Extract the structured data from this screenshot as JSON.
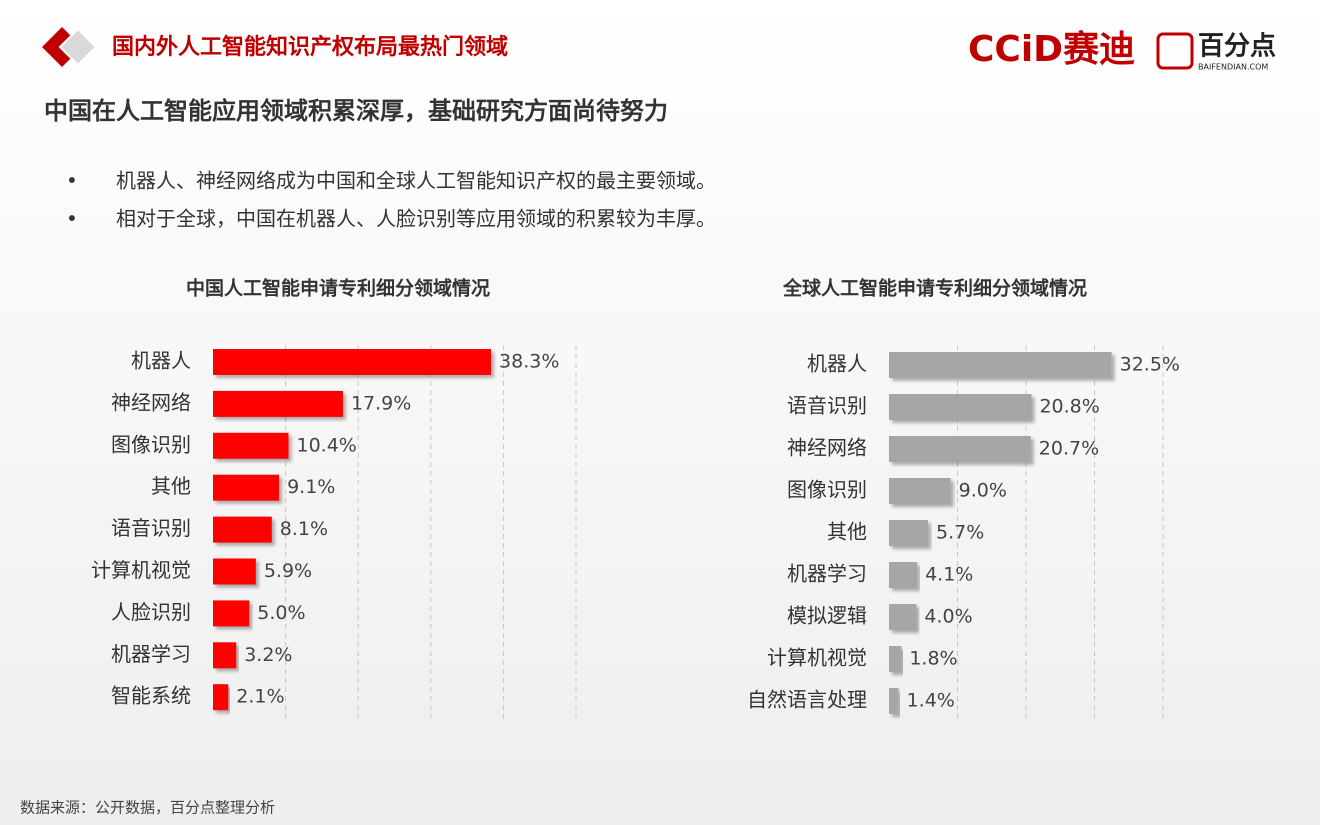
{
  "header": {
    "title": "国内外人工智能知识产权布局最热门领域",
    "logo_ccid": "CCiD赛迪",
    "logo_bfd": "百分点",
    "logo_bfd_url": "BAIFENDIAN.COM"
  },
  "subtitle": "中国在人工智能应用领域积累深厚，基础研究方面尚待努力",
  "bullets": [
    "机器人、神经网络成为中国和全球人工智能知识产权的最主要领域。",
    "相对于全球，中国在机器人、人脸识别等应用领域的积累较为丰厚。"
  ],
  "chart_data": [
    {
      "type": "bar",
      "orientation": "horizontal",
      "title": "中国人工智能申请专利细分领域情况",
      "categories": [
        "机器人",
        "神经网络",
        "图像识别",
        "其他",
        "语音识别",
        "计算机视觉",
        "人脸识别",
        "机器学习",
        "智能系统"
      ],
      "values": [
        38.3,
        17.9,
        10.4,
        9.1,
        8.1,
        5.9,
        5.0,
        3.2,
        2.1
      ],
      "value_labels": [
        "38.3%",
        "17.9%",
        "10.4%",
        "9.1%",
        "8.1%",
        "5.9%",
        "5.0%",
        "3.2%",
        "2.1%"
      ],
      "color": "#ff0000",
      "xlim": [
        0,
        50
      ],
      "xticks": [
        10,
        20,
        30,
        40,
        50
      ],
      "grid": true
    },
    {
      "type": "bar",
      "orientation": "horizontal",
      "title": "全球人工智能申请专利细分领域情况",
      "categories": [
        "机器人",
        "语音识别",
        "神经网络",
        "图像识别",
        "其他",
        "机器学习",
        "模拟逻辑",
        "计算机视觉",
        "自然语言处理"
      ],
      "values": [
        32.5,
        20.8,
        20.7,
        9.0,
        5.7,
        4.1,
        4.0,
        1.8,
        1.4
      ],
      "value_labels": [
        "32.5%",
        "20.8%",
        "20.7%",
        "9.0%",
        "5.7%",
        "4.1%",
        "4.0%",
        "1.8%",
        "1.4%"
      ],
      "color": "#a6a6a6",
      "xlim": [
        0,
        40
      ],
      "xticks": [
        10,
        20,
        30,
        40
      ],
      "grid": true
    }
  ],
  "source": "数据来源：公开数据，百分点整理分析"
}
